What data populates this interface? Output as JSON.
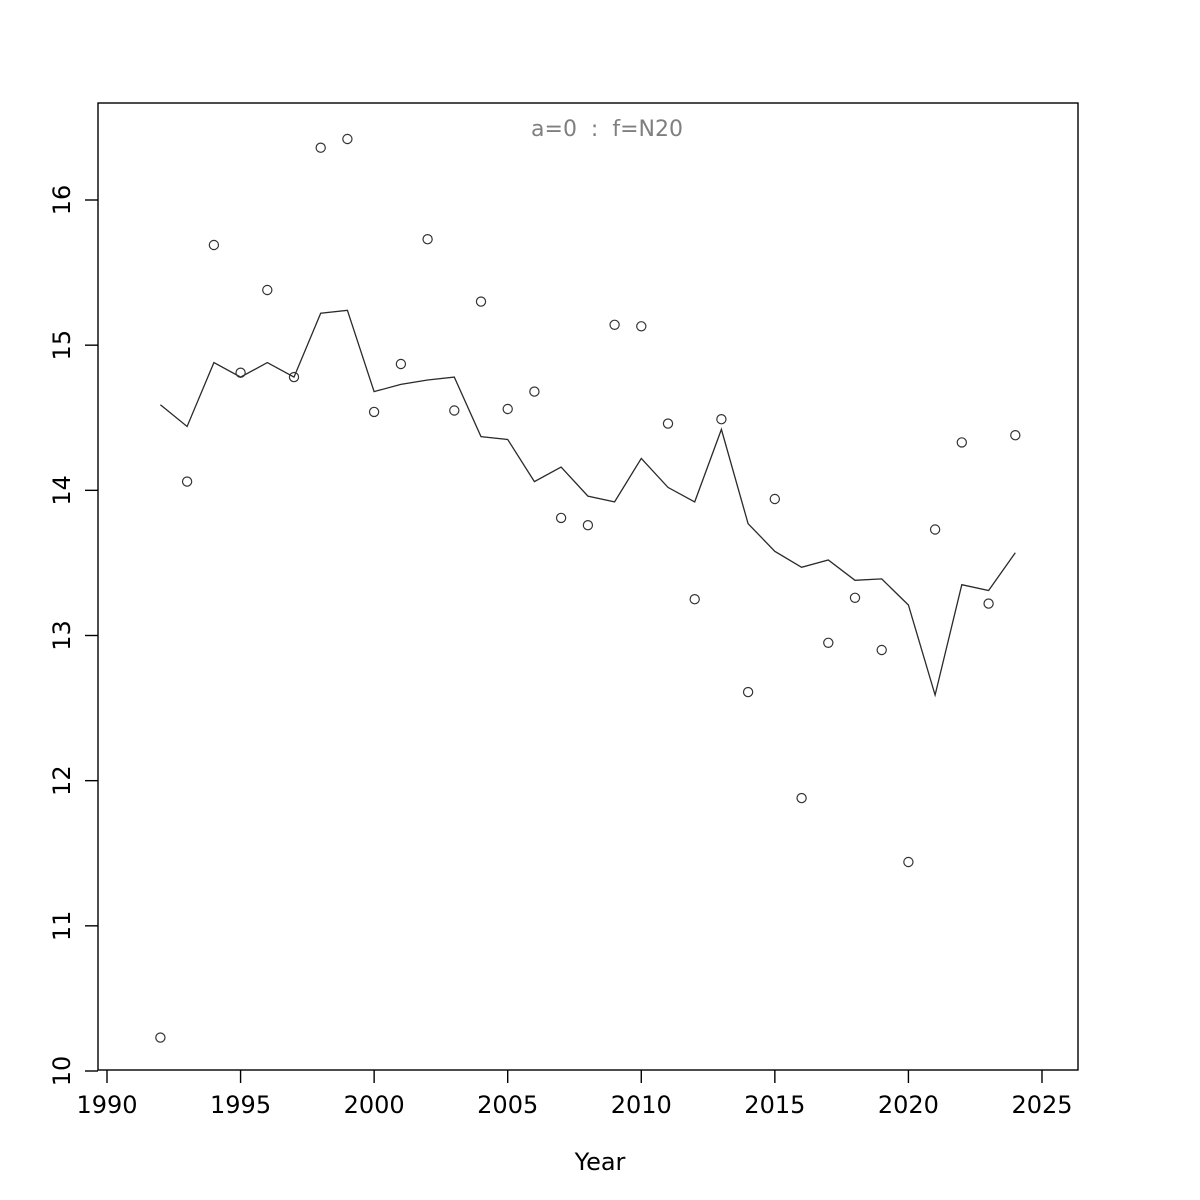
{
  "page": {
    "background": "#ffffff"
  },
  "chart_data": {
    "type": "scatter",
    "title": "a=0  :  f=N20",
    "title_color": "#7f7f7f",
    "xlabel": "Year",
    "ylabel": "",
    "frame": true,
    "grid": false,
    "legend": "none",
    "x_ticks": [
      1990,
      1995,
      2000,
      2005,
      2010,
      2015,
      2020,
      2025
    ],
    "y_ticks": [
      10,
      11,
      12,
      13,
      14,
      15,
      16
    ],
    "xlim": [
      1989.7,
      2026.4
    ],
    "ylim": [
      10.0,
      16.67
    ],
    "x": [
      1992,
      1993,
      1994,
      1995,
      1996,
      1997,
      1998,
      1999,
      2000,
      2001,
      2002,
      2003,
      2004,
      2005,
      2006,
      2007,
      2008,
      2009,
      2010,
      2011,
      2012,
      2013,
      2014,
      2015,
      2016,
      2017,
      2018,
      2019,
      2020,
      2021,
      2022,
      2023,
      2024
    ],
    "series": [
      {
        "name": "observed-points",
        "style": "open-circle-scatter",
        "color": "#333333",
        "values": [
          10.23,
          14.06,
          15.69,
          14.81,
          15.38,
          14.78,
          16.36,
          16.42,
          14.54,
          14.87,
          15.73,
          14.55,
          15.3,
          14.56,
          14.68,
          13.81,
          13.76,
          15.14,
          15.13,
          14.46,
          13.25,
          14.49,
          12.61,
          13.94,
          11.88,
          12.95,
          13.26,
          12.9,
          11.44,
          13.73,
          14.33,
          13.22,
          14.38
        ]
      },
      {
        "name": "fitted-line",
        "style": "line",
        "color": "#2a2a2a",
        "values": [
          14.59,
          14.44,
          14.88,
          14.78,
          14.88,
          14.78,
          15.22,
          15.24,
          14.68,
          14.73,
          14.76,
          14.78,
          14.37,
          14.35,
          14.06,
          14.16,
          13.96,
          13.92,
          14.22,
          14.02,
          13.92,
          14.42,
          13.77,
          13.58,
          13.47,
          13.52,
          13.38,
          13.39,
          13.21,
          12.59,
          13.35,
          13.31,
          13.57
        ]
      }
    ]
  }
}
